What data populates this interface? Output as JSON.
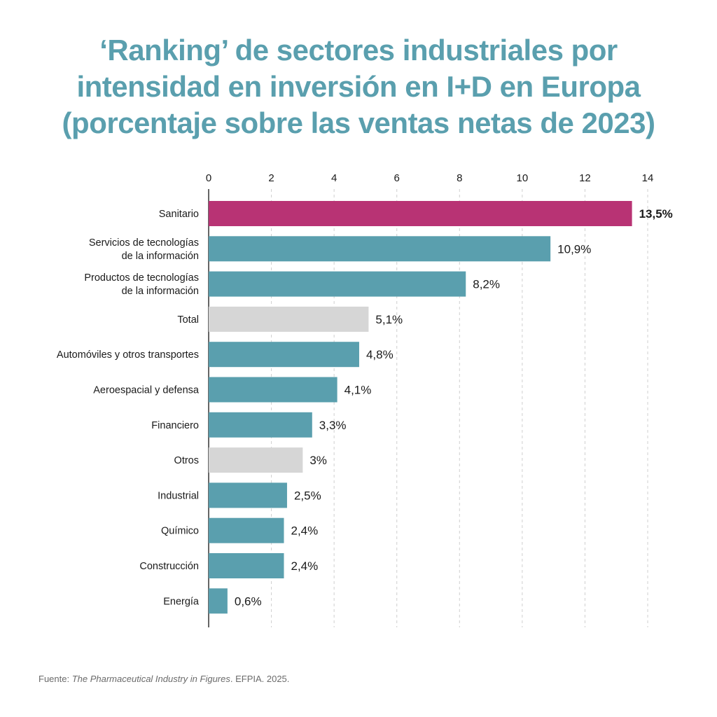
{
  "colors": {
    "title": "#5a9fae",
    "bar_default": "#5a9fae",
    "bar_highlight": "#b83374",
    "bar_neutral": "#d6d6d6",
    "grid": "#cfcfcf",
    "axis": "#333333"
  },
  "source": {
    "prefix": "Fuente: ",
    "work": "The Pharmaceutical Industry in Figures",
    "suffix": ". EFPIA. 2025."
  },
  "chart_data": {
    "type": "bar",
    "orientation": "horizontal",
    "title_lines": [
      "‘Ranking’ de sectores industriales por",
      "intensidad en inversión en I+D en Europa",
      "(porcentaje sobre las ventas netas de 2023)"
    ],
    "xlabel": "",
    "ylabel": "",
    "xlim": [
      0,
      14
    ],
    "x_ticks": [
      0,
      2,
      4,
      6,
      8,
      10,
      12,
      14
    ],
    "grid": true,
    "grid_style": "dashed-vertical",
    "legend": "none",
    "categories": [
      [
        "Sanitario"
      ],
      [
        "Servicios de tecnologías",
        "de la información"
      ],
      [
        "Productos de tecnologías",
        "de la información"
      ],
      [
        "Total"
      ],
      [
        "Automóviles y otros transportes"
      ],
      [
        "Aeroespacial y defensa"
      ],
      [
        "Financiero"
      ],
      [
        "Otros"
      ],
      [
        "Industrial"
      ],
      [
        "Químico"
      ],
      [
        "Construcción"
      ],
      [
        "Energía"
      ]
    ],
    "values": [
      13.5,
      10.9,
      8.2,
      5.1,
      4.8,
      4.1,
      3.3,
      3.0,
      2.5,
      2.4,
      2.4,
      0.6
    ],
    "value_labels": [
      "13,5%",
      "10,9%",
      "8,2%",
      "5,1%",
      "4,8%",
      "4,1%",
      "3,3%",
      "3%",
      "2,5%",
      "2,4%",
      "2,4%",
      "0,6%"
    ],
    "bar_styles": [
      "highlight",
      "default",
      "default",
      "neutral",
      "default",
      "default",
      "default",
      "neutral",
      "default",
      "default",
      "default",
      "default"
    ]
  }
}
